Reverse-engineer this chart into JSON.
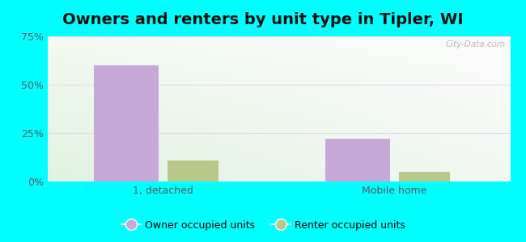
{
  "title": "Owners and renters by unit type in Tipler, WI",
  "categories": [
    "1, detached",
    "Mobile home"
  ],
  "owner_values": [
    60.0,
    22.0
  ],
  "renter_values": [
    11.0,
    5.0
  ],
  "owner_color": "#c8a8d8",
  "renter_color": "#b8c88a",
  "ylim": [
    0,
    75
  ],
  "yticks": [
    0,
    25,
    50,
    75
  ],
  "ytick_labels": [
    "0%",
    "25%",
    "50%",
    "75%"
  ],
  "owner_bar_width": 0.28,
  "renter_bar_width": 0.22,
  "background_outer": "#00ffff",
  "watermark": "City-Data.com",
  "legend_labels": [
    "Owner occupied units",
    "Renter occupied units"
  ],
  "title_fontsize": 14,
  "label_fontsize": 9,
  "tick_color": "#555566",
  "grid_color": "#ddddcc"
}
